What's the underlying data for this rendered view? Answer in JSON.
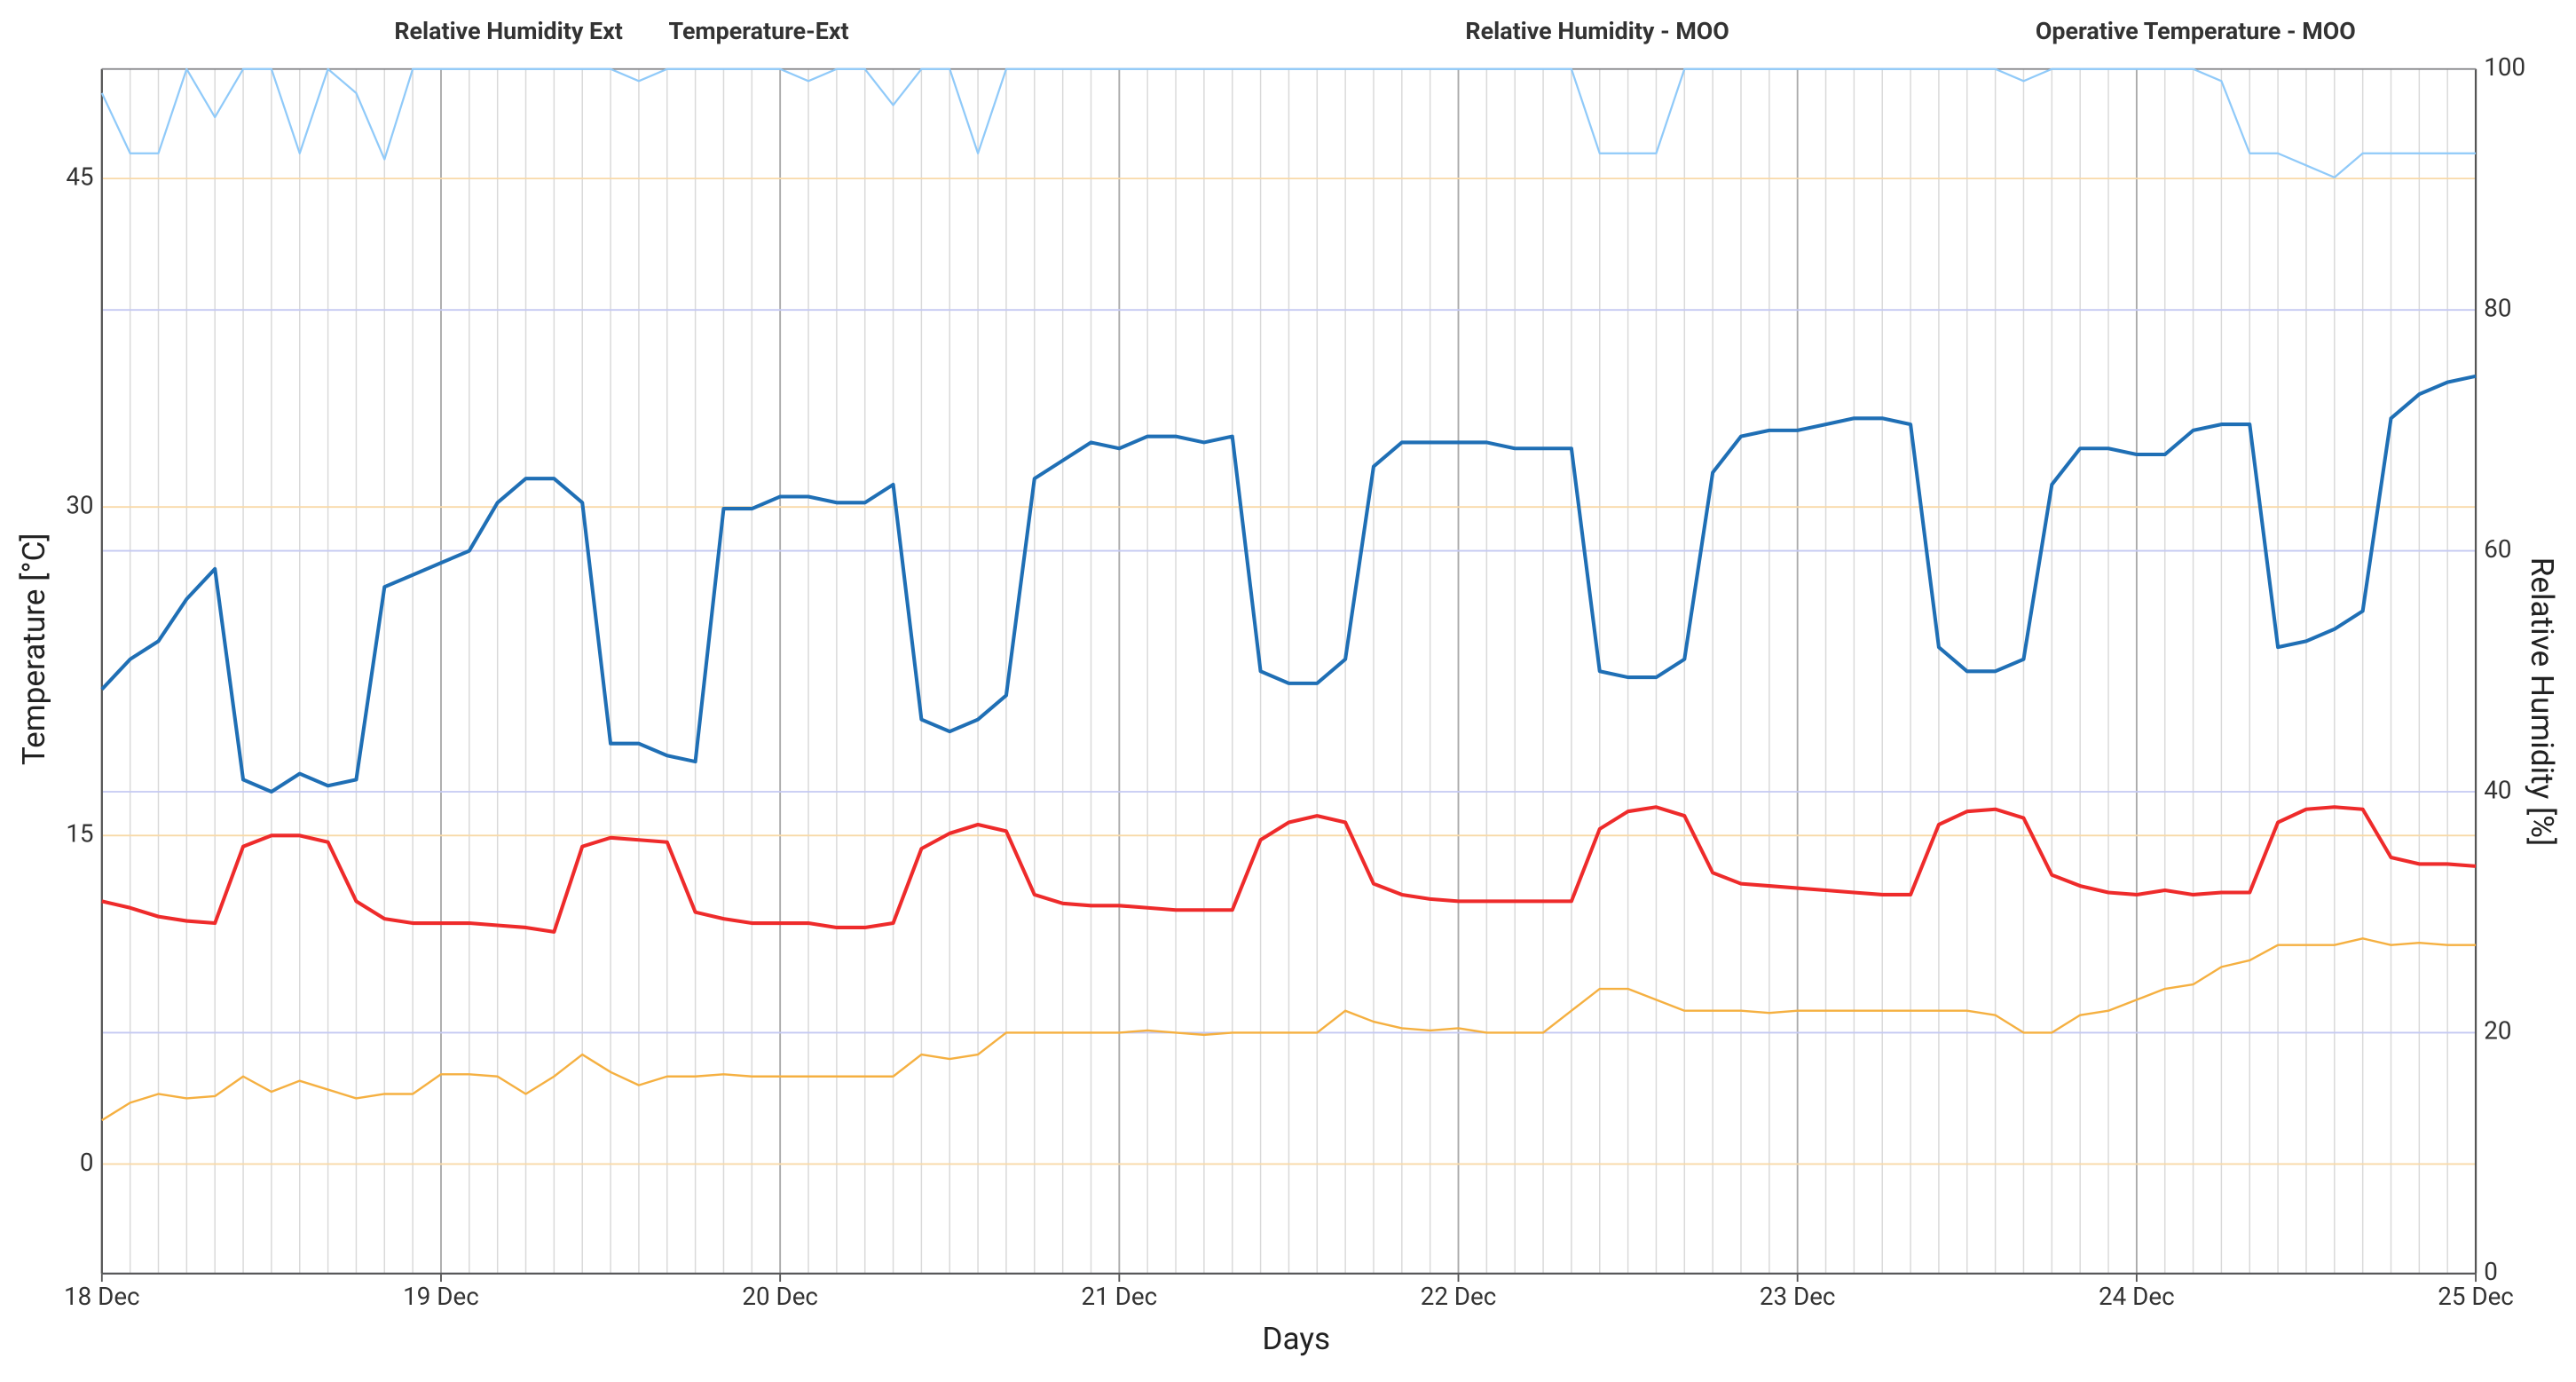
{
  "chart_data": {
    "type": "line",
    "xlabel": "Days",
    "ylabel": "Temperature [°C]",
    "y2label": "Relative Humidity [%]",
    "x": [
      0,
      2,
      4,
      6,
      8,
      10,
      12,
      14,
      16,
      18,
      20,
      22,
      24,
      26,
      28,
      30,
      32,
      34,
      36,
      38,
      40,
      42,
      44,
      46,
      48,
      50,
      52,
      54,
      56,
      58,
      60,
      62,
      64,
      66,
      68,
      70,
      72,
      74,
      76,
      78,
      80,
      82,
      84,
      86,
      88,
      90,
      92,
      94,
      96,
      98,
      100,
      102,
      104,
      106,
      108,
      110,
      112,
      114,
      116,
      118,
      120,
      122,
      124,
      126,
      128,
      130,
      132,
      134,
      136,
      138,
      140,
      142,
      144,
      146,
      148,
      150,
      152,
      154,
      156,
      158,
      160,
      162,
      164,
      166,
      168
    ],
    "xlim": [
      0,
      168
    ],
    "xticks": [
      {
        "value": 0,
        "label": "18 Dec"
      },
      {
        "value": 24,
        "label": "19 Dec"
      },
      {
        "value": 48,
        "label": "20 Dec"
      },
      {
        "value": 72,
        "label": "21 Dec"
      },
      {
        "value": 96,
        "label": "22 Dec"
      },
      {
        "value": 120,
        "label": "23 Dec"
      },
      {
        "value": 144,
        "label": "24 Dec"
      },
      {
        "value": 168,
        "label": "25 Dec"
      }
    ],
    "ylim": [
      -5,
      50
    ],
    "yticks": [
      0,
      15,
      30,
      45
    ],
    "y2lim": [
      0,
      100
    ],
    "y2ticks": [
      0,
      20,
      40,
      60,
      80,
      100
    ],
    "grid": true,
    "series": [
      {
        "name": "Relative Humidity Ext",
        "color": "#90caf9",
        "axis": "y2",
        "values": [
          98,
          93,
          93,
          100,
          96,
          100,
          100,
          93,
          100,
          98,
          92.5,
          100,
          100,
          100,
          100,
          100,
          100,
          100,
          100,
          99,
          100,
          100,
          100,
          100,
          100,
          99,
          100,
          100,
          97,
          100,
          100,
          93,
          100,
          100,
          100,
          100,
          100,
          100,
          100,
          100,
          100,
          100,
          100,
          100,
          100,
          100,
          100,
          100,
          100,
          100,
          100,
          100,
          100,
          93,
          93,
          93,
          100,
          100,
          100,
          100,
          100,
          100,
          100,
          100,
          100,
          100,
          100,
          100,
          99,
          100,
          100,
          100,
          100,
          100,
          100,
          99,
          93,
          93,
          92,
          91,
          93,
          93,
          93,
          93,
          93
        ]
      },
      {
        "name": "Temperature-Ext",
        "color": "#f5b041",
        "values": [
          2,
          2.8,
          3.2,
          3,
          3.1,
          4,
          3.3,
          3.8,
          3.4,
          3,
          3.2,
          3.2,
          4.1,
          4.1,
          4,
          3.2,
          4,
          5,
          4.2,
          3.6,
          4,
          4,
          4.1,
          4,
          4,
          4,
          4,
          4,
          4,
          5,
          4.8,
          5,
          6,
          6,
          6,
          6,
          6,
          6.1,
          6,
          5.9,
          6,
          6,
          6,
          6,
          7,
          6.5,
          6.2,
          6.1,
          6.2,
          6,
          6,
          6,
          7,
          8,
          8,
          7.5,
          7,
          7,
          7,
          6.9,
          7,
          7,
          7,
          7,
          7,
          7,
          7,
          6.8,
          6,
          6,
          6.8,
          7,
          7.5,
          8,
          8.2,
          9,
          9.3,
          10,
          10,
          10,
          10.3,
          10,
          10.1,
          10,
          10
        ]
      },
      {
        "name": "Relative Humidity - MOO",
        "color": "#1f6fb5",
        "axis": "y2",
        "values": [
          48.5,
          51,
          52.5,
          56,
          58.5,
          41,
          40,
          41.5,
          40.5,
          41,
          57,
          58,
          59,
          60,
          64,
          66,
          66,
          64,
          44,
          44,
          43,
          42.5,
          63.5,
          63.5,
          64.5,
          64.5,
          64,
          64,
          65.5,
          46,
          45,
          46,
          48,
          66,
          67.5,
          69,
          68.5,
          69.5,
          69.5,
          69,
          69.5,
          50,
          49,
          49,
          51,
          67,
          69,
          69,
          69,
          69,
          68.5,
          68.5,
          68.5,
          50,
          49.5,
          49.5,
          51,
          66.5,
          69.5,
          70,
          70,
          70.5,
          71,
          71,
          70.5,
          52,
          50,
          50,
          51,
          65.5,
          68.5,
          68.5,
          68,
          68,
          70,
          70.5,
          70.5,
          52,
          52.5,
          53.5,
          55,
          71,
          73,
          74,
          74.5
        ]
      },
      {
        "name": "Operative Temperature - MOO",
        "color": "#ee2b2b",
        "values": [
          12,
          11.7,
          11.3,
          11.1,
          11,
          14.5,
          15,
          15,
          14.7,
          12,
          11.2,
          11,
          11,
          11,
          10.9,
          10.8,
          10.6,
          14.5,
          14.9,
          14.8,
          14.7,
          11.5,
          11.2,
          11,
          11,
          11,
          10.8,
          10.8,
          11,
          14.4,
          15.1,
          15.5,
          15.2,
          12.3,
          11.9,
          11.8,
          11.8,
          11.7,
          11.6,
          11.6,
          11.6,
          14.8,
          15.6,
          15.9,
          15.6,
          12.8,
          12.3,
          12.1,
          12,
          12,
          12,
          12,
          12,
          15.3,
          16.1,
          16.3,
          15.9,
          13.3,
          12.8,
          12.7,
          12.6,
          12.5,
          12.4,
          12.3,
          12.3,
          15.5,
          16.1,
          16.2,
          15.8,
          13.2,
          12.7,
          12.4,
          12.3,
          12.5,
          12.3,
          12.4,
          12.4,
          15.6,
          16.2,
          16.3,
          16.2,
          14,
          13.7,
          13.7,
          13.6
        ]
      }
    ]
  }
}
